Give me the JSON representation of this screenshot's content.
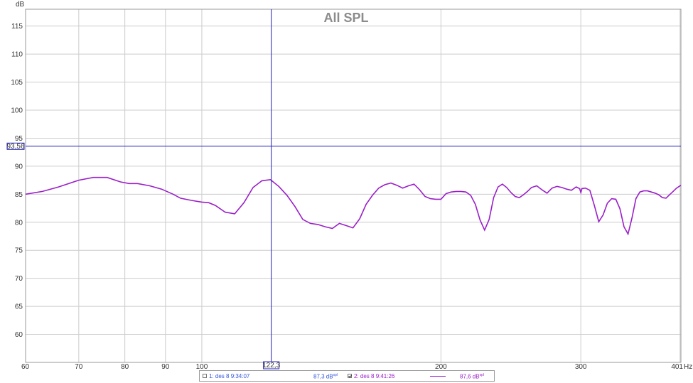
{
  "chart_data": {
    "type": "line",
    "title": "All SPL",
    "ylabel": "dB",
    "xunit": "Hz",
    "xscale": "log",
    "xlim": [
      60,
      401
    ],
    "ylim": [
      55,
      118
    ],
    "grid": true,
    "x_ticks": [
      60,
      70,
      80,
      90,
      100,
      200,
      300,
      401
    ],
    "y_ticks": [
      60,
      65,
      70,
      75,
      80,
      85,
      90,
      95,
      100,
      105,
      110,
      115
    ],
    "cursor": {
      "x": 122.3,
      "y": 93.56,
      "x_label": "122,3",
      "y_label": "93,56"
    },
    "series": [
      {
        "name": "2: des 8 9:41:26",
        "color": "#9a1fc8",
        "x": [
          60,
          63,
          66,
          70,
          73,
          76,
          79,
          81,
          83,
          86,
          89,
          92,
          94,
          97,
          100,
          102,
          104,
          107,
          110,
          113,
          116,
          119,
          122,
          125,
          128,
          131,
          134,
          137,
          140,
          143,
          146,
          149,
          152,
          155,
          158,
          161,
          164,
          167,
          170,
          173,
          176,
          179,
          182,
          185,
          188,
          191,
          194,
          197,
          200,
          203,
          206,
          209,
          212,
          215,
          218,
          221,
          224,
          227,
          230,
          233,
          236,
          239,
          242,
          245,
          248,
          251,
          254,
          257,
          260,
          264,
          268,
          272,
          276,
          280,
          284,
          288,
          292,
          296,
          299,
          300,
          301,
          304,
          308,
          312,
          316,
          320,
          324,
          328,
          332,
          336,
          340,
          344,
          348,
          352,
          356,
          360,
          364,
          368,
          372,
          376,
          380,
          384,
          388,
          392,
          396,
          401
        ],
        "y": [
          85.0,
          85.5,
          86.3,
          87.5,
          88.0,
          88.0,
          87.2,
          86.9,
          86.9,
          86.5,
          85.9,
          85.0,
          84.3,
          83.9,
          83.6,
          83.5,
          83.0,
          81.8,
          81.5,
          83.5,
          86.2,
          87.4,
          87.6,
          86.4,
          84.8,
          82.8,
          80.5,
          79.8,
          79.6,
          79.2,
          78.9,
          79.8,
          79.4,
          79.0,
          80.6,
          83.2,
          84.8,
          86.1,
          86.7,
          87.0,
          86.6,
          86.1,
          86.5,
          86.8,
          85.8,
          84.6,
          84.2,
          84.1,
          84.1,
          85.1,
          85.4,
          85.5,
          85.5,
          85.4,
          84.8,
          83.2,
          80.4,
          78.6,
          80.5,
          84.4,
          86.3,
          86.8,
          86.2,
          85.3,
          84.6,
          84.4,
          84.9,
          85.5,
          86.2,
          86.5,
          85.8,
          85.2,
          86.1,
          86.4,
          86.2,
          85.9,
          85.7,
          86.3,
          86.0,
          85.3,
          86.0,
          86.1,
          85.7,
          83.0,
          80.1,
          81.3,
          83.4,
          84.2,
          84.1,
          82.4,
          79.2,
          77.9,
          80.8,
          84.2,
          85.4,
          85.6,
          85.6,
          85.4,
          85.2,
          84.9,
          84.4,
          84.3,
          84.9,
          85.5,
          86.1,
          86.6
        ]
      }
    ]
  },
  "legend": {
    "item1_label": "1: des 8 9:34:07",
    "item1_value": "87,3 dB",
    "item1_value_unit": "spl",
    "item2_label": "2: des 8 9:41:26",
    "item2_value": "87,6 dB",
    "item2_value_unit": "spl",
    "item1_checked": false,
    "item2_checked": true,
    "item1_color": "#3355dd",
    "item2_color": "#9a1fc8"
  },
  "colors": {
    "grid": "#cccccc",
    "cursor": "#2222bb",
    "frame": "#999999"
  }
}
